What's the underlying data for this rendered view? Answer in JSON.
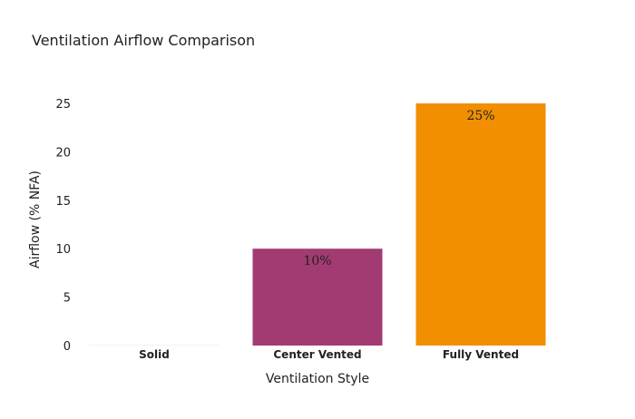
{
  "chart_data": {
    "type": "bar",
    "title": "Ventilation Airflow Comparison",
    "xlabel": "Ventilation Style",
    "ylabel": "Airflow (% NFA)",
    "categories": [
      "Solid",
      "Center Vented",
      "Fully Vented"
    ],
    "values": [
      0,
      10,
      25
    ],
    "data_labels": [
      "",
      "10%",
      "25%"
    ],
    "colors": [
      "#f2f2f2",
      "#a23b72",
      "#f18f01"
    ],
    "ylim": [
      0,
      25
    ],
    "yticks": [
      0,
      5,
      10,
      15,
      20,
      25
    ],
    "grid": false,
    "legend": "none"
  }
}
